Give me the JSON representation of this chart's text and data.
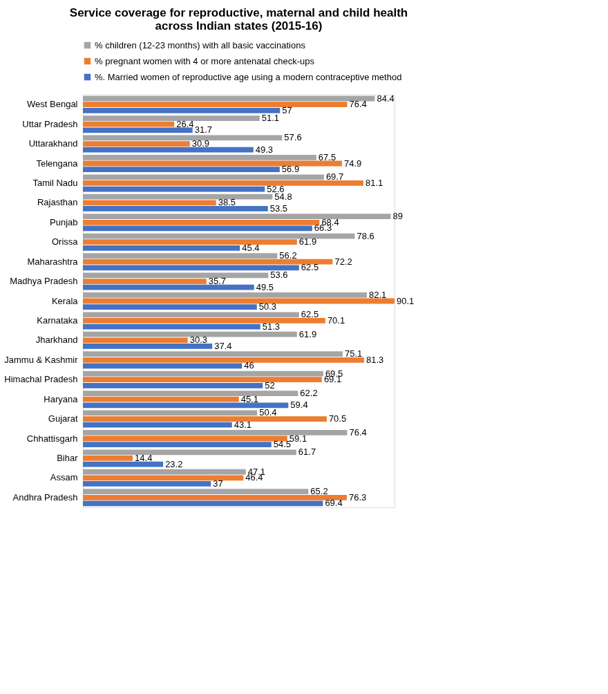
{
  "chart_data": {
    "type": "bar",
    "orientation": "horizontal",
    "title": [
      "Service coverage for reproductive, maternal and child health",
      "across Indian states (2015-16)"
    ],
    "categories": [
      "West Bengal",
      "Uttar Pradesh",
      "Uttarakhand",
      "Telengana",
      "Tamil Nadu",
      "Rajasthan",
      "Punjab",
      "Orissa",
      "Maharashtra",
      "Madhya Pradesh",
      "Kerala",
      "Karnataka",
      "Jharkhand",
      "Jammu & Kashmir",
      "Himachal Pradesh",
      "Haryana",
      "Gujarat",
      "Chhattisgarh",
      "Bihar",
      "Assam",
      "Andhra Pradesh"
    ],
    "series": [
      {
        "name": "% children (12-23 months) with all basic vaccinations",
        "color": "#a5a5a5",
        "values": [
          84.4,
          51.1,
          57.6,
          67.5,
          69.7,
          54.8,
          89,
          78.6,
          56.2,
          53.6,
          82.1,
          62.5,
          61.9,
          75.1,
          69.5,
          62.2,
          50.4,
          76.4,
          61.7,
          47.1,
          65.2
        ]
      },
      {
        "name": "% pregnant women with 4 or more antenatal check-ups",
        "color": "#ed7d31",
        "values": [
          76.4,
          26.4,
          30.9,
          74.9,
          81.1,
          38.5,
          68.4,
          61.9,
          72.2,
          35.7,
          90.1,
          70.1,
          30.3,
          81.3,
          69.1,
          45.1,
          70.5,
          59.1,
          14.4,
          46.4,
          76.3
        ]
      },
      {
        "name": "%. Married women of reproductive age using a modern contraceptive method",
        "color": "#4472c4",
        "values": [
          57,
          31.7,
          49.3,
          56.9,
          52.6,
          53.5,
          66.3,
          45.4,
          62.5,
          49.5,
          50.3,
          51.3,
          37.4,
          46,
          52,
          59.4,
          43.1,
          54.5,
          23.2,
          37,
          69.4
        ]
      }
    ],
    "data_labels": true,
    "legend": "top"
  }
}
